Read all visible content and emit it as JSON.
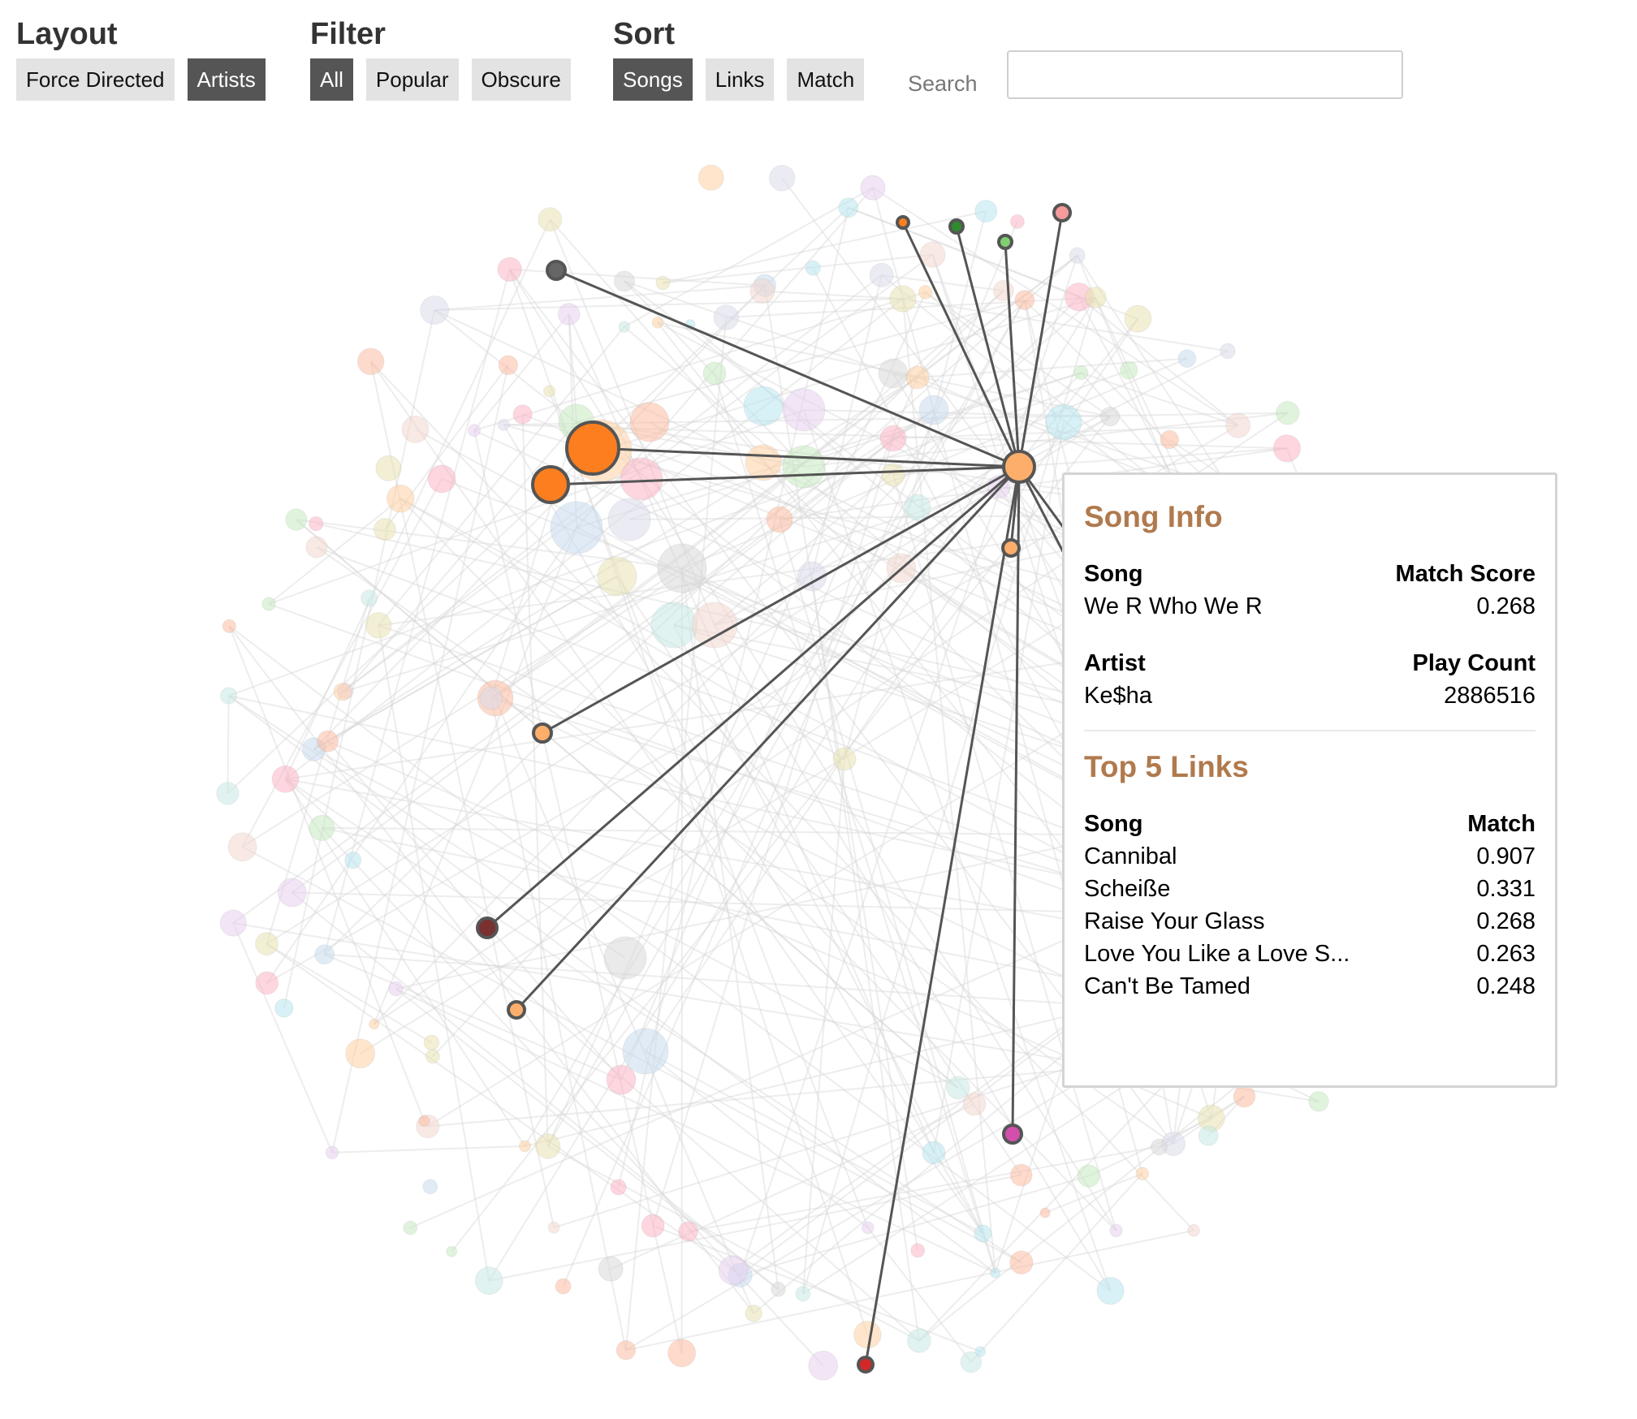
{
  "toolbar": {
    "layout": {
      "title": "Layout",
      "buttons": [
        {
          "label": "Force Directed",
          "active": false
        },
        {
          "label": "Artists",
          "active": true
        }
      ]
    },
    "filter": {
      "title": "Filter",
      "buttons": [
        {
          "label": "All",
          "active": true
        },
        {
          "label": "Popular",
          "active": false
        },
        {
          "label": "Obscure",
          "active": false
        }
      ]
    },
    "sort": {
      "title": "Sort",
      "buttons": [
        {
          "label": "Songs",
          "active": true
        },
        {
          "label": "Links",
          "active": false
        },
        {
          "label": "Match",
          "active": false
        }
      ]
    },
    "search": {
      "label": "Search",
      "value": ""
    }
  },
  "info": {
    "title": "Song Info",
    "song_header": "Song",
    "match_score_header": "Match Score",
    "song": "We R Who We R",
    "match_score": "0.268",
    "artist_header": "Artist",
    "play_count_header": "Play Count",
    "artist": "Ke$ha",
    "play_count": "2886516",
    "links_title": "Top 5 Links",
    "links_song_header": "Song",
    "links_match_header": "Match",
    "links": [
      {
        "song": "Cannibal",
        "match": "0.907"
      },
      {
        "song": "Scheiße",
        "match": "0.331"
      },
      {
        "song": "Raise Your Glass",
        "match": "0.268"
      },
      {
        "song": "Love You Like a Love S...",
        "match": "0.263"
      },
      {
        "song": "Can't Be Tamed",
        "match": "0.248"
      }
    ]
  },
  "colors": {
    "accent": "#b07a4e",
    "active_button": "#555555",
    "button": "#e3e3e3",
    "highlight_link": "#555555",
    "faded_link": "#e4e4e4"
  }
}
